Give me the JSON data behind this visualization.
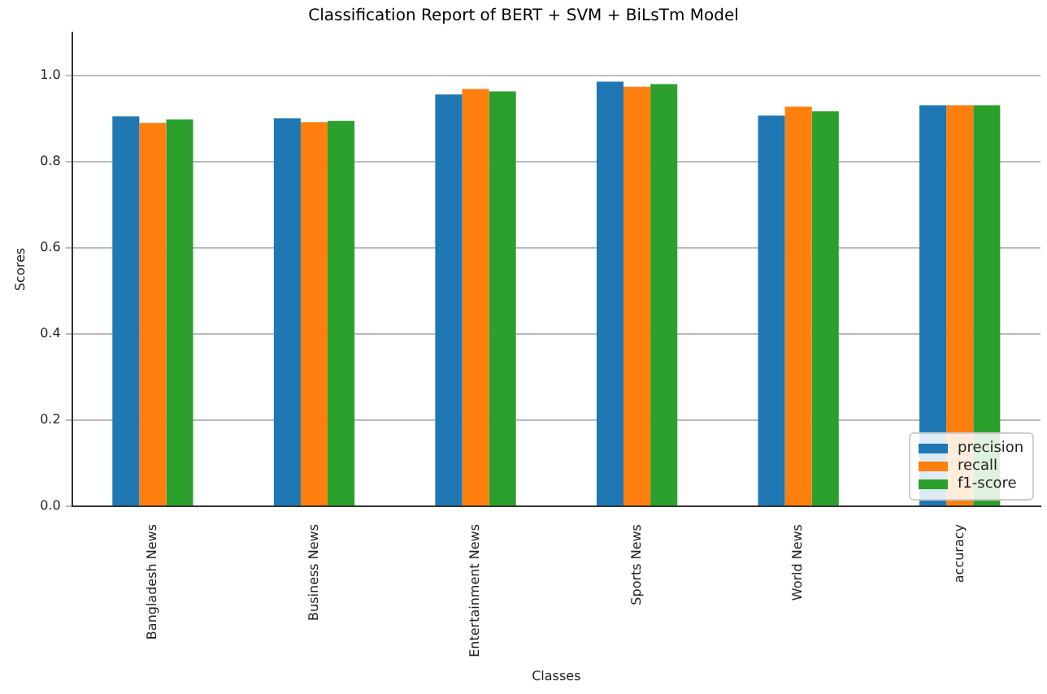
{
  "chart_data": {
    "type": "bar",
    "title": "Classification Report of BERT + SVM + BiLsTm Model",
    "xlabel": "Classes",
    "ylabel": "Scores",
    "categories": [
      "Bangladesh News",
      "Business News",
      "Entertainment News",
      "Sports News",
      "World News",
      "accuracy"
    ],
    "series": [
      {
        "name": "precision",
        "color": "#1f77b4",
        "values": [
          0.905,
          0.901,
          0.956,
          0.986,
          0.907,
          0.931
        ]
      },
      {
        "name": "recall",
        "color": "#ff7f0e",
        "values": [
          0.89,
          0.892,
          0.969,
          0.974,
          0.928,
          0.931
        ]
      },
      {
        "name": "f1-score",
        "color": "#2ca02c",
        "values": [
          0.898,
          0.895,
          0.963,
          0.98,
          0.917,
          0.931
        ]
      }
    ],
    "ylim": [
      0,
      1.1
    ],
    "yticks": [
      {
        "value": 0.0,
        "label": "0.0"
      },
      {
        "value": 0.2,
        "label": "0.2"
      },
      {
        "value": 0.4,
        "label": "0.4"
      },
      {
        "value": 0.6,
        "label": "0.6"
      },
      {
        "value": 0.8,
        "label": "0.8"
      },
      {
        "value": 1.0,
        "label": "1.0"
      }
    ],
    "grid": "y",
    "legend": "bottom right"
  }
}
